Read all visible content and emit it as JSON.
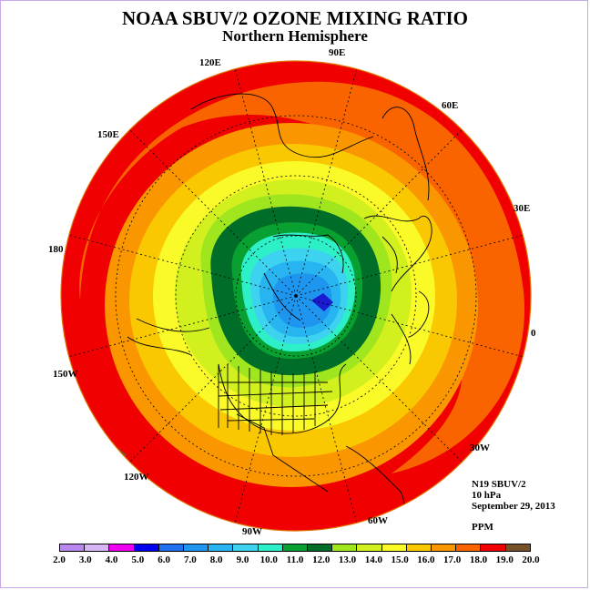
{
  "title": "NOAA SBUV/2 OZONE MIXING RATIO",
  "subtitle": "Northern Hemisphere",
  "longitude_labels": [
    {
      "text": "90E"
    },
    {
      "text": "60E"
    },
    {
      "text": "30E"
    },
    {
      "text": "0"
    },
    {
      "text": "30W"
    },
    {
      "text": "60W"
    },
    {
      "text": "90W"
    },
    {
      "text": "120W"
    },
    {
      "text": "150W"
    },
    {
      "text": "180"
    },
    {
      "text": "150E"
    },
    {
      "text": "120E"
    }
  ],
  "info": {
    "satellite": "N19 SBUV/2",
    "level": "10 hPa",
    "date": "September 29, 2013",
    "units": "PPM"
  },
  "colorbar": {
    "ticks": [
      "2.0",
      "3.0",
      "4.0",
      "5.0",
      "6.0",
      "7.0",
      "8.0",
      "9.0",
      "10.0",
      "11.0",
      "12.0",
      "13.0",
      "14.0",
      "15.0",
      "16.0",
      "17.0",
      "18.0",
      "19.0",
      "20.0"
    ],
    "colors": [
      "#b987f0",
      "#d8b6f6",
      "#f000f0",
      "#0000f0",
      "#1e70f0",
      "#1e96f0",
      "#28b4f0",
      "#3cd2f0",
      "#2ef0c8",
      "#08a030",
      "#006e28",
      "#a0e61e",
      "#d2f01e",
      "#fafa28",
      "#fac800",
      "#fa9600",
      "#fa6400",
      "#f00000",
      "#785028"
    ]
  },
  "map": {
    "ocean_bands": [
      "#f00000",
      "#fa6400",
      "#fa9600",
      "#fac800",
      "#fafa28",
      "#d2f01e",
      "#a0e61e",
      "#006e28",
      "#08a030",
      "#2ef0c8",
      "#3cd2f0",
      "#28b4f0",
      "#1e96f0",
      "#1e70f0",
      "#0000f0"
    ],
    "max_spot": "#1a1ad0"
  }
}
